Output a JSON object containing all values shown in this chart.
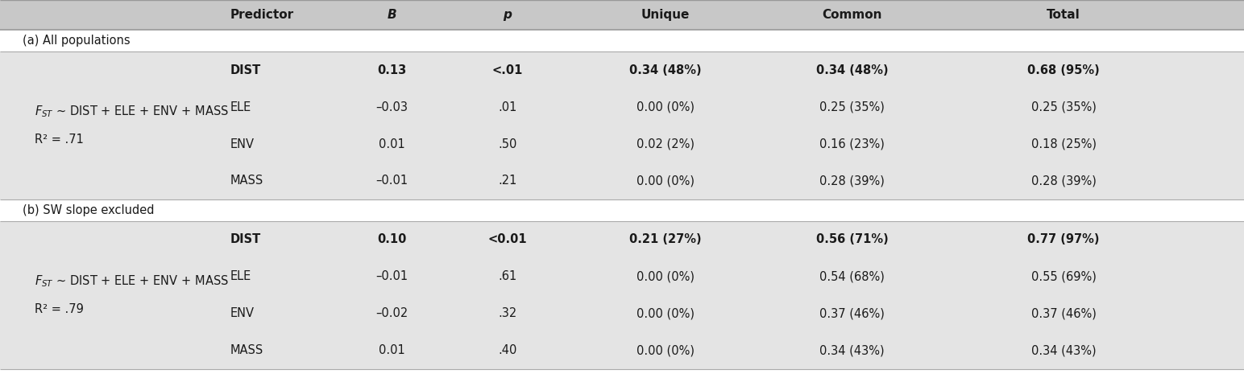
{
  "header_row": [
    "Predictor",
    "B",
    "p",
    "Unique",
    "Common",
    "Total"
  ],
  "section_a_label": "(a) All populations",
  "section_a_r2": "R² = .71",
  "section_b_label": "(b) SW slope excluded",
  "section_b_r2": "R² = .79",
  "section_a_rows": [
    [
      "DIST",
      "0.13",
      "<.01",
      "0.34 (48%)",
      "0.34 (48%)",
      "0.68 (95%)"
    ],
    [
      "ELE",
      "–0.03",
      ".01",
      "0.00 (0%)",
      "0.25 (35%)",
      "0.25 (35%)"
    ],
    [
      "ENV",
      "0.01",
      ".50",
      "0.02 (2%)",
      "0.16 (23%)",
      "0.18 (25%)"
    ],
    [
      "MASS",
      "–0.01",
      ".21",
      "0.00 (0%)",
      "0.28 (39%)",
      "0.28 (39%)"
    ]
  ],
  "section_b_rows": [
    [
      "DIST",
      "0.10",
      "<0.01",
      "0.21 (27%)",
      "0.56 (71%)",
      "0.77 (97%)"
    ],
    [
      "ELE",
      "–0.01",
      ".61",
      "0.00 (0%)",
      "0.54 (68%)",
      "0.55 (69%)"
    ],
    [
      "ENV",
      "–0.02",
      ".32",
      "0.00 (0%)",
      "0.37 (46%)",
      "0.37 (46%)"
    ],
    [
      "MASS",
      "0.01",
      ".40",
      "0.00 (0%)",
      "0.34 (43%)",
      "0.34 (43%)"
    ]
  ],
  "bold_a_rows": [
    0
  ],
  "bold_b_rows": [
    0
  ],
  "header_bg": "#c8c8c8",
  "data_bg_a": "#e4e4e4",
  "data_bg_b": "#e4e4e4",
  "section_label_bg": "#ffffff",
  "text_color": "#1a1a1a",
  "fig_width": 15.44,
  "fig_height": 4.65,
  "font_size": 10.5,
  "header_font_size": 11,
  "col_predictor": 0.185,
  "col_B": 0.315,
  "col_p": 0.408,
  "col_unique": 0.535,
  "col_common": 0.685,
  "col_total": 0.855,
  "col_formula": 0.018
}
